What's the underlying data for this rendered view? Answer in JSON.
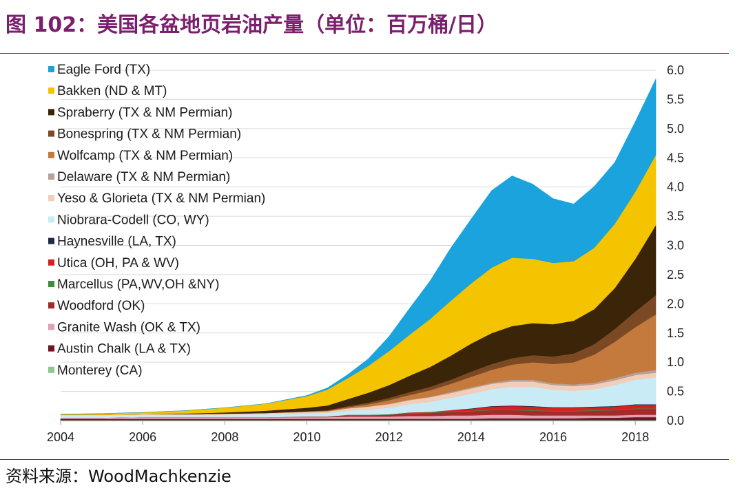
{
  "title": "图 102：美国各盆地页岩油产量（单位：百万桶/日）",
  "source": "资料来源：WoodMachkenzie",
  "chart_data": {
    "type": "area",
    "stacked": true,
    "x": [
      2004,
      2005,
      2006,
      2007,
      2008,
      2009,
      2010,
      2010.5,
      2011,
      2011.5,
      2012,
      2012.5,
      2013,
      2013.5,
      2014,
      2014.5,
      2015,
      2015.5,
      2016,
      2016.5,
      2017,
      2017.5,
      2018,
      2018.5
    ],
    "x_ticks": [
      2004,
      2006,
      2008,
      2010,
      2012,
      2014,
      2016,
      2018
    ],
    "y_ticks": [
      "0.0",
      "0.5",
      "1.0",
      "1.5",
      "2.0",
      "2.5",
      "3.0",
      "3.5",
      "4.0",
      "4.5",
      "5.0",
      "5.5",
      "6.0"
    ],
    "ylim": [
      0,
      6
    ],
    "xlim": [
      2004,
      2018.5
    ],
    "y_axis_side": "right",
    "grid": "horizontal",
    "legend_position": "top-left",
    "series": [
      {
        "name": "Monterey (CA)",
        "color": "#8dc98a",
        "values": [
          0.01,
          0.01,
          0.01,
          0.01,
          0.01,
          0.01,
          0.01,
          0.01,
          0.01,
          0.01,
          0.01,
          0.01,
          0.01,
          0.01,
          0.01,
          0.01,
          0.01,
          0.01,
          0.01,
          0.01,
          0.01,
          0.01,
          0.01,
          0.01
        ]
      },
      {
        "name": "Austin Chalk (LA & TX)",
        "color": "#6e1424",
        "values": [
          0.02,
          0.02,
          0.02,
          0.02,
          0.02,
          0.02,
          0.02,
          0.02,
          0.02,
          0.02,
          0.02,
          0.02,
          0.02,
          0.02,
          0.02,
          0.03,
          0.03,
          0.03,
          0.03,
          0.03,
          0.04,
          0.04,
          0.05,
          0.05
        ]
      },
      {
        "name": "Granite Wash (OK & TX)",
        "color": "#e3a0b0",
        "values": [
          0.02,
          0.02,
          0.03,
          0.03,
          0.03,
          0.03,
          0.03,
          0.03,
          0.04,
          0.04,
          0.04,
          0.05,
          0.05,
          0.06,
          0.06,
          0.06,
          0.06,
          0.05,
          0.05,
          0.05,
          0.04,
          0.04,
          0.04,
          0.04
        ]
      },
      {
        "name": "Woodford (OK)",
        "color": "#a52a2a",
        "values": [
          0.0,
          0.0,
          0.0,
          0.0,
          0.0,
          0.0,
          0.01,
          0.01,
          0.02,
          0.02,
          0.03,
          0.04,
          0.05,
          0.06,
          0.07,
          0.08,
          0.08,
          0.08,
          0.07,
          0.07,
          0.08,
          0.09,
          0.1,
          0.1
        ]
      },
      {
        "name": "Marcellus (PA,WV,OH &NY)",
        "color": "#3e8e3e",
        "values": [
          0.0,
          0.0,
          0.0,
          0.0,
          0.0,
          0.0,
          0.0,
          0.0,
          0.01,
          0.01,
          0.01,
          0.01,
          0.01,
          0.01,
          0.01,
          0.01,
          0.01,
          0.01,
          0.01,
          0.01,
          0.01,
          0.01,
          0.01,
          0.01
        ]
      },
      {
        "name": "Utica (OH, PA & WV)",
        "color": "#d92020",
        "values": [
          0.0,
          0.0,
          0.0,
          0.0,
          0.0,
          0.0,
          0.0,
          0.0,
          0.0,
          0.0,
          0.0,
          0.01,
          0.01,
          0.02,
          0.03,
          0.05,
          0.06,
          0.06,
          0.05,
          0.05,
          0.05,
          0.05,
          0.06,
          0.06
        ]
      },
      {
        "name": "Haynesville (LA, TX)",
        "color": "#1f2a44",
        "values": [
          0.0,
          0.0,
          0.0,
          0.0,
          0.0,
          0.0,
          0.0,
          0.0,
          0.0,
          0.0,
          0.0,
          0.0,
          0.0,
          0.0,
          0.01,
          0.01,
          0.01,
          0.01,
          0.01,
          0.01,
          0.01,
          0.01,
          0.01,
          0.01
        ]
      },
      {
        "name": "Niobrara-Codell (CO, WY)",
        "color": "#c9ebf5",
        "values": [
          0.04,
          0.04,
          0.04,
          0.04,
          0.04,
          0.05,
          0.05,
          0.06,
          0.07,
          0.09,
          0.11,
          0.14,
          0.17,
          0.21,
          0.25,
          0.29,
          0.32,
          0.33,
          0.3,
          0.28,
          0.3,
          0.36,
          0.42,
          0.46
        ]
      },
      {
        "name": "Yeso & Glorieta (TX & NM Permian)",
        "color": "#f2cdb8",
        "values": [
          0.01,
          0.01,
          0.01,
          0.01,
          0.02,
          0.02,
          0.03,
          0.03,
          0.04,
          0.05,
          0.06,
          0.07,
          0.08,
          0.08,
          0.09,
          0.09,
          0.09,
          0.09,
          0.08,
          0.08,
          0.08,
          0.08,
          0.08,
          0.08
        ]
      },
      {
        "name": "Delaware (TX & NM Permian)",
        "color": "#b7a09a",
        "values": [
          0.0,
          0.0,
          0.0,
          0.0,
          0.0,
          0.0,
          0.0,
          0.0,
          0.0,
          0.0,
          0.01,
          0.01,
          0.01,
          0.02,
          0.02,
          0.02,
          0.03,
          0.03,
          0.03,
          0.03,
          0.03,
          0.04,
          0.04,
          0.05
        ]
      },
      {
        "name": "Wolfcamp (TX & NM Permian)",
        "color": "#c47a3c",
        "values": [
          0.0,
          0.0,
          0.0,
          0.0,
          0.0,
          0.0,
          0.01,
          0.01,
          0.02,
          0.04,
          0.06,
          0.08,
          0.11,
          0.14,
          0.18,
          0.22,
          0.26,
          0.3,
          0.33,
          0.38,
          0.48,
          0.62,
          0.78,
          0.95
        ]
      },
      {
        "name": "Bonespring (TX & NM Permian)",
        "color": "#7b4a24",
        "values": [
          0.0,
          0.0,
          0.0,
          0.0,
          0.0,
          0.0,
          0.0,
          0.01,
          0.02,
          0.03,
          0.04,
          0.05,
          0.06,
          0.07,
          0.09,
          0.1,
          0.11,
          0.12,
          0.13,
          0.15,
          0.18,
          0.22,
          0.27,
          0.33
        ]
      },
      {
        "name": "Spraberry (TX & NM Permian)",
        "color": "#3a2508",
        "values": [
          0.0,
          0.0,
          0.0,
          0.01,
          0.02,
          0.04,
          0.06,
          0.08,
          0.12,
          0.17,
          0.22,
          0.28,
          0.34,
          0.41,
          0.48,
          0.53,
          0.55,
          0.55,
          0.55,
          0.56,
          0.6,
          0.7,
          0.9,
          1.2
        ]
      },
      {
        "name": "Bakken (ND & MT)",
        "color": "#f5c400",
        "values": [
          0.01,
          0.02,
          0.03,
          0.05,
          0.08,
          0.12,
          0.2,
          0.27,
          0.36,
          0.46,
          0.58,
          0.7,
          0.82,
          0.94,
          1.03,
          1.12,
          1.17,
          1.1,
          1.05,
          1.02,
          1.05,
          1.1,
          1.15,
          1.2
        ]
      },
      {
        "name": "Eagle Ford (TX)",
        "color": "#1aa3dc",
        "values": [
          0.0,
          0.0,
          0.0,
          0.0,
          0.0,
          0.0,
          0.01,
          0.03,
          0.06,
          0.12,
          0.25,
          0.45,
          0.65,
          0.9,
          1.1,
          1.32,
          1.4,
          1.28,
          1.1,
          0.98,
          1.05,
          1.05,
          1.2,
          1.3
        ]
      }
    ]
  }
}
